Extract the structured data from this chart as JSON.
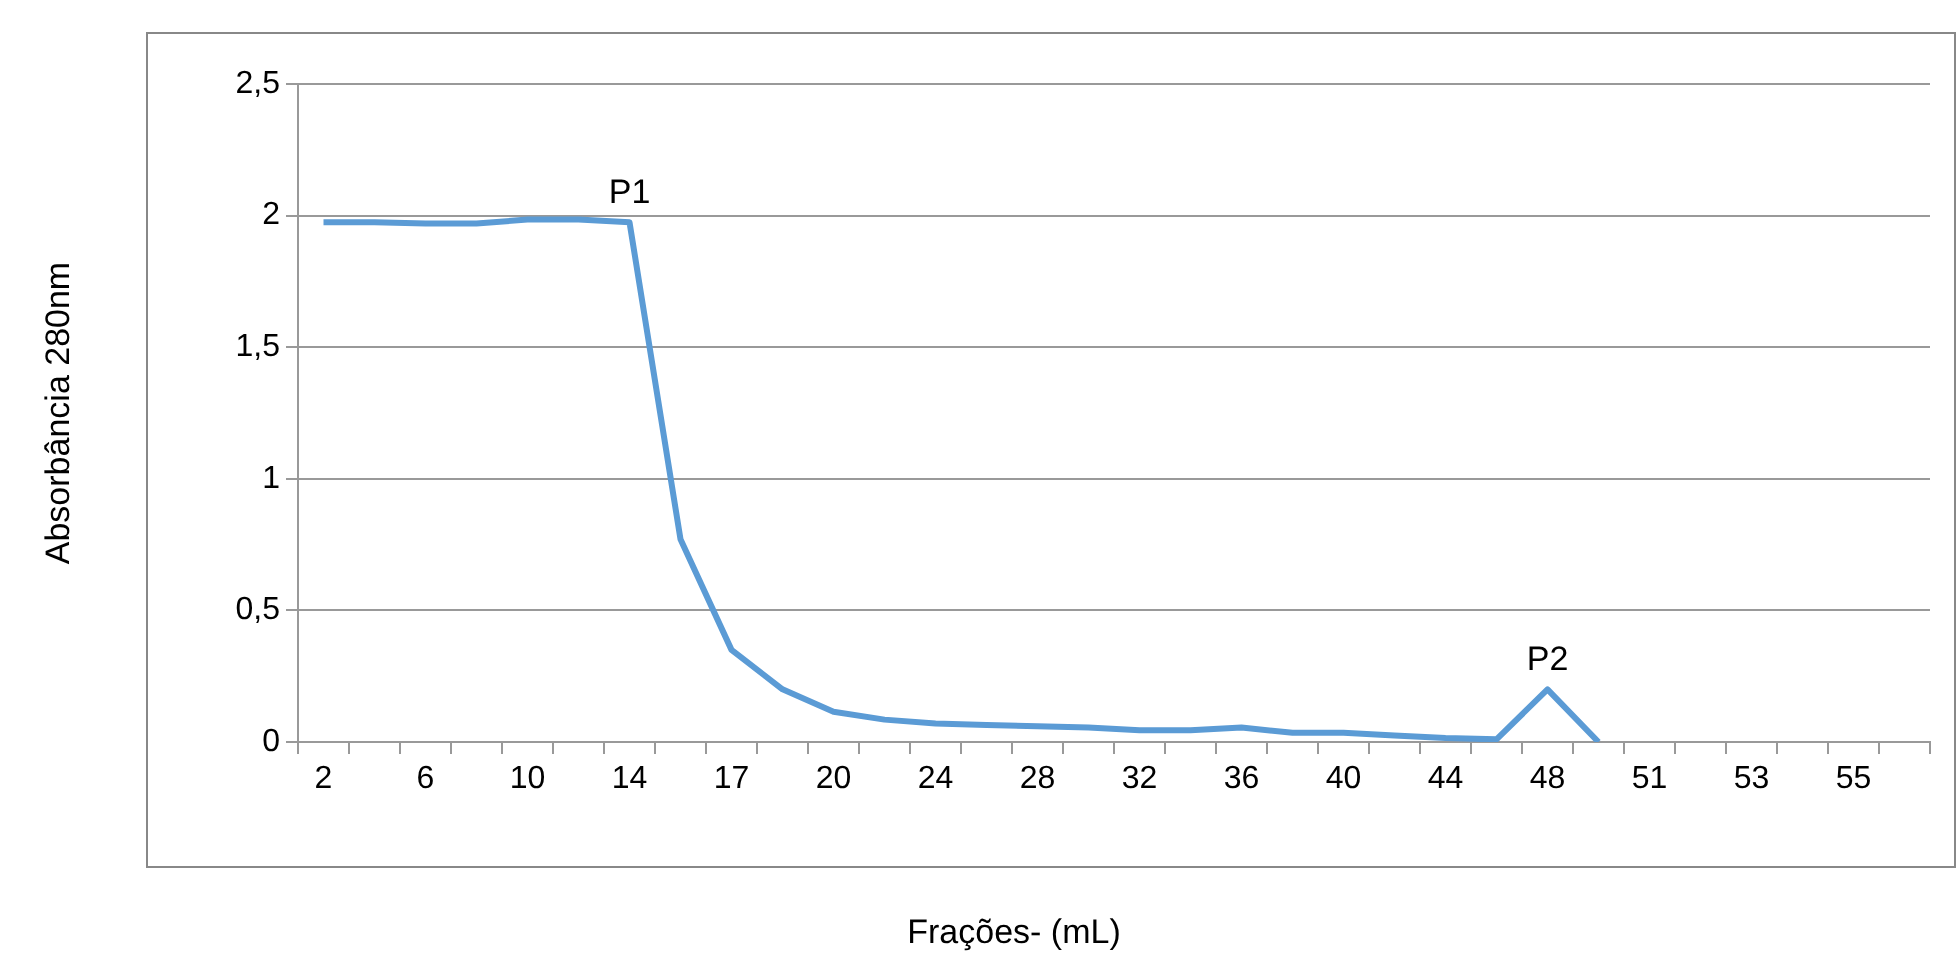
{
  "chart_data": {
    "type": "line",
    "xlabel": "Frações- (mL)",
    "ylabel": "Absorbância 280nm",
    "categories": [
      "2",
      null,
      "6",
      null,
      "10",
      null,
      "14",
      null,
      "17",
      null,
      "20",
      null,
      "24",
      null,
      "28",
      null,
      "32",
      null,
      "36",
      null,
      "40",
      null,
      "44",
      null,
      "48",
      null,
      "51",
      null,
      "53",
      null,
      "55",
      null
    ],
    "series": [
      {
        "color": "#5b9bd5",
        "values": [
          1.975,
          1.975,
          1.97,
          1.97,
          1.985,
          1.985,
          1.975,
          0.77,
          0.35,
          0.2,
          0.115,
          0.085,
          0.07,
          0.065,
          0.06,
          0.055,
          0.045,
          0.045,
          0.055,
          0.035,
          0.035,
          0.025,
          0.015,
          0.01,
          0.2,
          0,
          null,
          null,
          null,
          null,
          null,
          null
        ]
      }
    ],
    "ylim": [
      0,
      2.5
    ],
    "yticks": [
      0,
      {
        "value": 0.5,
        "label": "0,5"
      },
      1,
      {
        "value": 1.5,
        "label": "1,5"
      },
      2,
      {
        "value": 2.5,
        "label": "2,5"
      }
    ],
    "grid": "y",
    "legend": false,
    "marker": "none",
    "line_style": "solid",
    "annotations": [
      {
        "text": "P1",
        "x": "14",
        "y": 1.975
      },
      {
        "text": "P2",
        "x": "48",
        "y": 0.2
      }
    ]
  }
}
